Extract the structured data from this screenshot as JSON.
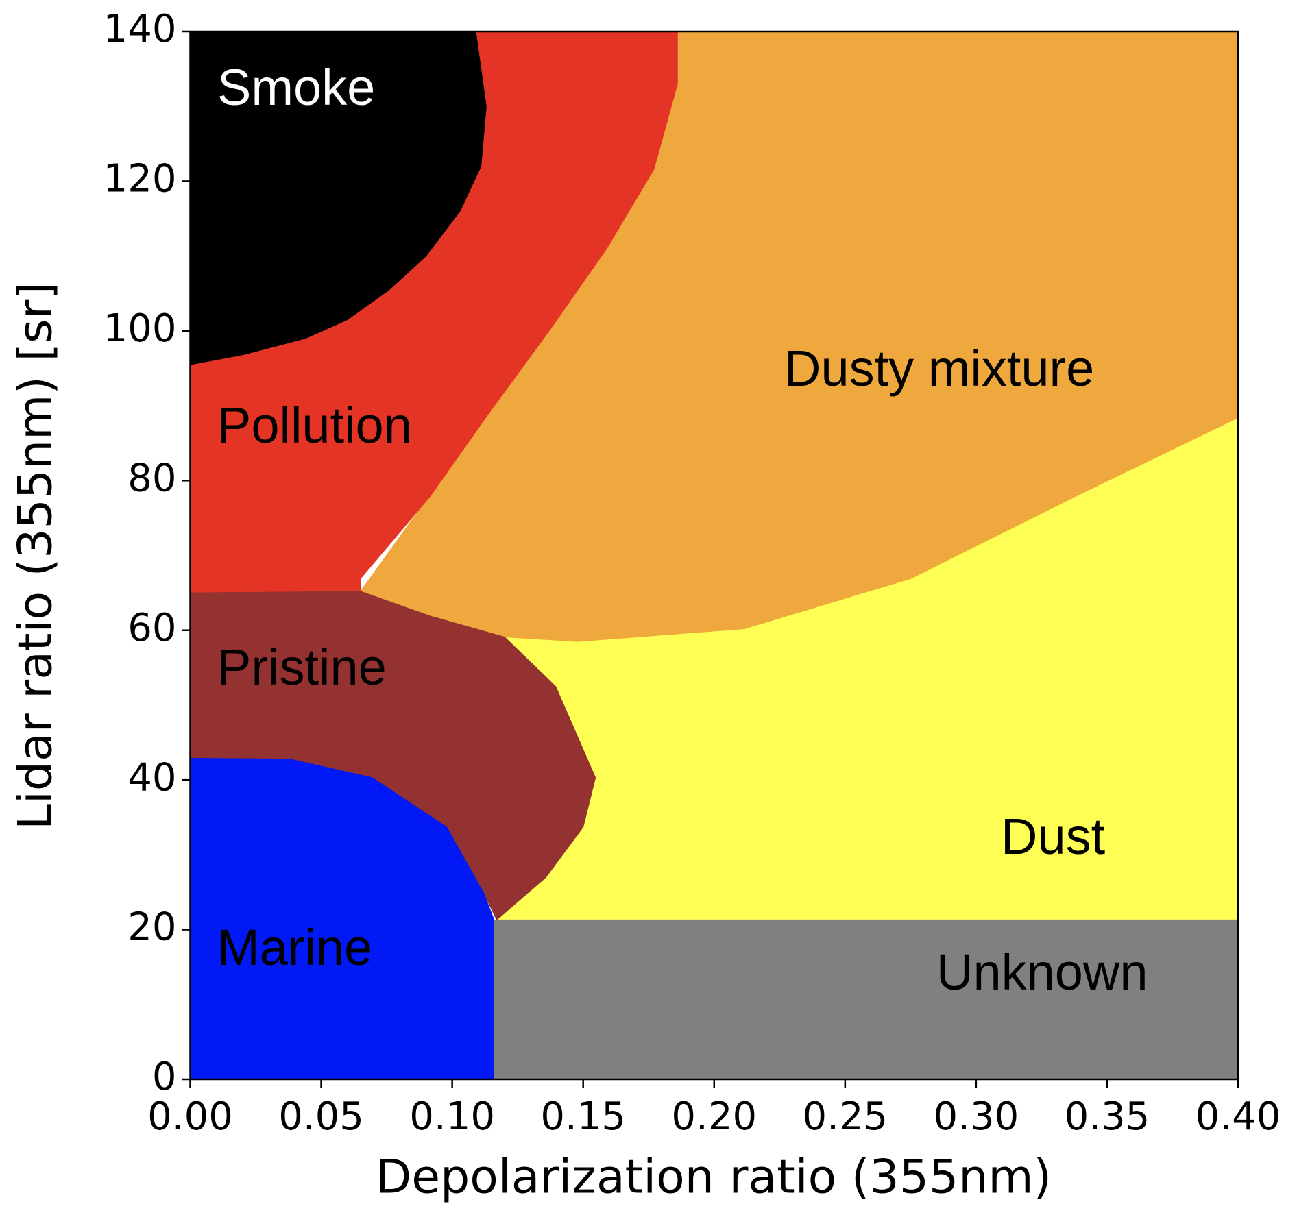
{
  "chart_data": {
    "type": "region",
    "x_label": "Depolarization ratio (355nm)",
    "y_label": "Lidar ratio (355nm) [sr]",
    "xlim": [
      0,
      0.4
    ],
    "ylim": [
      0,
      140
    ],
    "xticks": [
      {
        "value": 0,
        "label": "0.00"
      },
      0.05,
      {
        "value": 0.1,
        "label": "0.10"
      },
      0.15,
      {
        "value": 0.2,
        "label": "0.20"
      },
      0.25,
      {
        "value": 0.3,
        "label": "0.30"
      },
      0.35,
      {
        "value": 0.4,
        "label": "0.40"
      }
    ],
    "yticks": [
      0,
      20,
      40,
      60,
      80,
      100,
      120,
      140
    ],
    "regions": [
      {
        "name": "Dust",
        "color": "#fefe55",
        "label_color": "#000000",
        "x": [
          0.117,
          0.4,
          0.4,
          0.338,
          0.275,
          0.2115,
          0.148,
          0.12,
          0.1395,
          0.1547,
          0.15,
          0.1358
        ],
        "y": [
          21.3,
          21.3,
          88.4,
          77.9,
          66.9,
          60.2,
          58.5,
          59.1,
          52.5,
          40.3,
          33.7,
          27
        ]
      },
      {
        "name": "Dusty mixture",
        "color": "#eea83d",
        "label_color": "#000000",
        "x": [
          0.065,
          0.0916,
          0.12,
          0.148,
          0.2115,
          0.275,
          0.338,
          0.4,
          0.4,
          0.186,
          0.159,
          0.114
        ],
        "y": [
          65.2,
          61.9,
          59.1,
          58.5,
          60.2,
          66.9,
          77.9,
          88.4,
          140,
          140,
          111,
          89
        ]
      },
      {
        "name": "Pollution",
        "color": "#e33425",
        "label_color": "#000000",
        "x": [
          0,
          0.186,
          0.186,
          0.177,
          0.159,
          0.137,
          0.114,
          0.0916,
          0.065,
          0.065,
          0
        ],
        "y": [
          140,
          140,
          133,
          121.6,
          111,
          100,
          89,
          77.9,
          66.9,
          65.2,
          65
        ]
      },
      {
        "name": "Smoke",
        "color": "#000000",
        "label_color": "#ffffff",
        "x": [
          0,
          0.109,
          0.113,
          0.111,
          0.103,
          0.09,
          0.076,
          0.06,
          0.044,
          0.02,
          0
        ],
        "y": [
          140,
          140,
          130,
          122,
          116,
          110,
          105.5,
          101.5,
          99,
          96.8,
          95.5
        ]
      },
      {
        "name": "Pristine",
        "color": "#943231",
        "label_color": "#000000",
        "x": [
          0,
          0.065,
          0.0916,
          0.12,
          0.1395,
          0.1547,
          0.15,
          0.1358,
          0.117,
          0.112,
          0.0979,
          0.0695,
          0.0379,
          0
        ],
        "y": [
          65,
          65.2,
          61.9,
          59.1,
          52.5,
          40.3,
          33.7,
          27,
          21.3,
          24.9,
          33.7,
          40.3,
          42.8,
          42.9
        ]
      },
      {
        "name": "Marine",
        "color": "#0019f5",
        "label_color": "#000000",
        "x": [
          0,
          0.116,
          0.116,
          0.112,
          0.0979,
          0.0695,
          0.0379,
          0
        ],
        "y": [
          0,
          0,
          21.3,
          24.9,
          33.7,
          40.3,
          42.8,
          42.9
        ]
      },
      {
        "name": "Unknown",
        "color": "#808080",
        "label_color": "#000000",
        "x": [
          0.116,
          0.4,
          0.4,
          0.116
        ],
        "y": [
          0,
          0,
          21.3,
          21.3
        ]
      }
    ]
  }
}
